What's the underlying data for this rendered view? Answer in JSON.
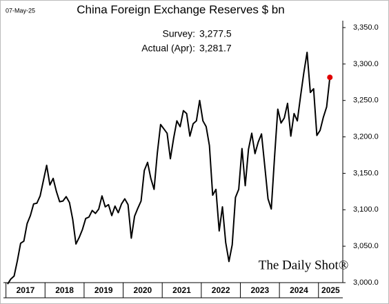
{
  "chart_data": {
    "type": "line",
    "date": "07-May-25",
    "title": "China Foreign Exchange Reserves $ bn",
    "annotations": {
      "survey_label": "Survey:",
      "survey_value": "3,277.5",
      "actual_label": "Actual (Apr):",
      "actual_value": "3,281.7"
    },
    "watermark": "The Daily Shot®",
    "categories": [
      "2017",
      null,
      null,
      null,
      null,
      null,
      null,
      null,
      null,
      null,
      null,
      null,
      "2018",
      null,
      null,
      null,
      null,
      null,
      null,
      null,
      null,
      null,
      null,
      null,
      "2019",
      null,
      null,
      null,
      null,
      null,
      null,
      null,
      null,
      null,
      null,
      null,
      "2020",
      null,
      null,
      null,
      null,
      null,
      null,
      null,
      null,
      null,
      null,
      null,
      "2021",
      null,
      null,
      null,
      null,
      null,
      null,
      null,
      null,
      null,
      null,
      null,
      "2022",
      null,
      null,
      null,
      null,
      null,
      null,
      null,
      null,
      null,
      null,
      null,
      "2023",
      null,
      null,
      null,
      null,
      null,
      null,
      null,
      null,
      null,
      null,
      null,
      "2024",
      null,
      null,
      null,
      null,
      null,
      null,
      null,
      null,
      null,
      null,
      null,
      "2025",
      null,
      null,
      null
    ],
    "series": [
      {
        "name": "China FX reserves",
        "color": "#000000",
        "values": [
          2998,
          3005,
          3009,
          3030,
          3054,
          3057,
          3081,
          3092,
          3108,
          3109,
          3119,
          3140,
          3161,
          3134,
          3143,
          3125,
          3111,
          3112,
          3118,
          3110,
          3087,
          3053,
          3062,
          3073,
          3088,
          3090,
          3099,
          3095,
          3101,
          3119,
          3104,
          3107,
          3092,
          3105,
          3096,
          3108,
          3115,
          3107,
          3061,
          3091,
          3102,
          3112,
          3154,
          3165,
          3143,
          3128,
          3178,
          3217,
          3211,
          3205,
          3170,
          3198,
          3222,
          3214,
          3236,
          3232,
          3201,
          3218,
          3222,
          3250,
          3222,
          3214,
          3188,
          3120,
          3128,
          3071,
          3104,
          3055,
          3029,
          3052,
          3117,
          3128,
          3184,
          3133,
          3183,
          3205,
          3177,
          3193,
          3204,
          3160,
          3115,
          3101,
          3172,
          3238,
          3219,
          3226,
          3246,
          3201,
          3232,
          3222,
          3256,
          3288,
          3316,
          3261,
          3266,
          3202,
          3209,
          3227,
          3241,
          3281.7
        ]
      }
    ],
    "highlight_color": "#e00000",
    "ylim": [
      3000,
      3350
    ],
    "yticks": [
      {
        "value": 3000,
        "label": "3,000.0"
      },
      {
        "value": 3050,
        "label": "3,050.0"
      },
      {
        "value": 3100,
        "label": "3,100.0"
      },
      {
        "value": 3150,
        "label": "3,150.0"
      },
      {
        "value": 3200,
        "label": "3,200.0"
      },
      {
        "value": 3250,
        "label": "3,250.0"
      },
      {
        "value": 3300,
        "label": "3,300.0"
      },
      {
        "value": 3350,
        "label": "3,350.0"
      }
    ]
  }
}
